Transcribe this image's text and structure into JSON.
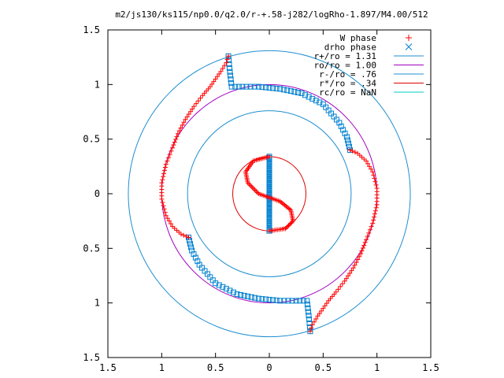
{
  "chart_data": {
    "type": "scatter",
    "title": "m2/js130/ks115/np0.0/q2.0/r-+.58-j282/logRho-1.897/M4.00/512",
    "xlabel": "",
    "ylabel": "",
    "xlim": [
      -1.5,
      1.5
    ],
    "ylim": [
      -1.5,
      1.5
    ],
    "x_ticks": [
      -1.5,
      -1,
      -0.5,
      0,
      0.5,
      1,
      1.5
    ],
    "x_tick_labels": [
      "1.5",
      "1",
      "0.5",
      "0",
      "0.5",
      "1",
      "1.5"
    ],
    "y_ticks": [
      1.5,
      1,
      0.5,
      0,
      -0.5,
      -1,
      -1.5
    ],
    "y_tick_labels": [
      "1.5",
      "1",
      "0.5",
      "0",
      "0.5",
      "1",
      "1.5"
    ],
    "grid": false,
    "legend_position": "top-right",
    "legend": [
      {
        "label": "W phase",
        "kind": "marker",
        "marker": "+",
        "color": "#ff0000"
      },
      {
        "label": "drho phase",
        "kind": "marker",
        "marker": "x",
        "color": "#0080d0"
      },
      {
        "label": "r+/ro = 1.31",
        "kind": "line",
        "color": "#1f8fd0"
      },
      {
        "label": "ro/ro = 1.00",
        "kind": "line",
        "color": "#a000c0"
      },
      {
        "label": "r-/ro = .76",
        "kind": "line",
        "color": "#1f8fd0"
      },
      {
        "label": "r*/ro = .34",
        "kind": "line",
        "color": "#e00000"
      },
      {
        "label": "rc/ro = NaN",
        "kind": "line",
        "color": "#00c8c8"
      }
    ],
    "circles": [
      {
        "r": 1.31,
        "color": "#1f8fd0"
      },
      {
        "r": 1.0,
        "color": "#a000c0"
      },
      {
        "r": 0.76,
        "color": "#1f8fd0"
      },
      {
        "r": 0.34,
        "color": "#e00000"
      }
    ],
    "series": [
      {
        "name": "W phase",
        "marker": "+",
        "color": "#ff0000",
        "description_points": [
          [
            0.0,
            0.34
          ],
          [
            -0.15,
            0.3
          ],
          [
            -0.22,
            0.2
          ],
          [
            -0.2,
            0.1
          ],
          [
            -0.1,
            0.0
          ],
          [
            0.1,
            -0.07
          ],
          [
            0.2,
            -0.15
          ],
          [
            0.22,
            -0.25
          ],
          [
            0.15,
            -0.32
          ],
          [
            0.0,
            -0.34
          ],
          [
            -0.38,
            1.26
          ],
          [
            -0.4,
            1.2
          ],
          [
            -0.45,
            1.12
          ],
          [
            -0.5,
            1.05
          ],
          [
            -0.55,
            0.98
          ],
          [
            -0.62,
            0.9
          ],
          [
            -0.7,
            0.8
          ],
          [
            -0.78,
            0.68
          ],
          [
            -0.85,
            0.55
          ],
          [
            -0.9,
            0.42
          ],
          [
            -0.96,
            0.27
          ],
          [
            -1.0,
            0.1
          ],
          [
            -1.0,
            -0.05
          ],
          [
            -0.96,
            -0.2
          ],
          [
            -0.9,
            -0.3
          ],
          [
            -0.82,
            -0.37
          ],
          [
            -0.75,
            -0.4
          ],
          [
            0.38,
            -1.26
          ],
          [
            0.4,
            -1.2
          ],
          [
            0.45,
            -1.12
          ],
          [
            0.5,
            -1.05
          ],
          [
            0.55,
            -0.98
          ],
          [
            0.62,
            -0.9
          ],
          [
            0.7,
            -0.8
          ],
          [
            0.78,
            -0.68
          ],
          [
            0.85,
            -0.55
          ],
          [
            0.9,
            -0.42
          ],
          [
            0.96,
            -0.27
          ],
          [
            1.0,
            -0.1
          ],
          [
            1.0,
            0.05
          ],
          [
            0.96,
            0.2
          ],
          [
            0.9,
            0.3
          ],
          [
            0.82,
            0.37
          ],
          [
            0.75,
            0.4
          ]
        ]
      },
      {
        "name": "drho phase",
        "marker": "x",
        "color": "#0080d0",
        "description_points": [
          [
            0.0,
            0.34
          ],
          [
            0.0,
            0.2
          ],
          [
            0.0,
            0.0
          ],
          [
            0.0,
            -0.2
          ],
          [
            0.0,
            -0.34
          ],
          [
            -0.38,
            1.26
          ],
          [
            -0.37,
            1.15
          ],
          [
            -0.35,
            0.98
          ],
          [
            -0.25,
            0.98
          ],
          [
            -0.1,
            0.98
          ],
          [
            0.1,
            0.96
          ],
          [
            0.3,
            0.92
          ],
          [
            0.5,
            0.82
          ],
          [
            0.65,
            0.65
          ],
          [
            0.72,
            0.52
          ],
          [
            0.75,
            0.4
          ],
          [
            0.38,
            -1.26
          ],
          [
            0.37,
            -1.15
          ],
          [
            0.35,
            -0.98
          ],
          [
            0.25,
            -0.98
          ],
          [
            0.1,
            -0.98
          ],
          [
            -0.1,
            -0.96
          ],
          [
            -0.3,
            -0.92
          ],
          [
            -0.5,
            -0.82
          ],
          [
            -0.65,
            -0.65
          ],
          [
            -0.72,
            -0.52
          ],
          [
            -0.75,
            -0.4
          ]
        ]
      }
    ]
  }
}
